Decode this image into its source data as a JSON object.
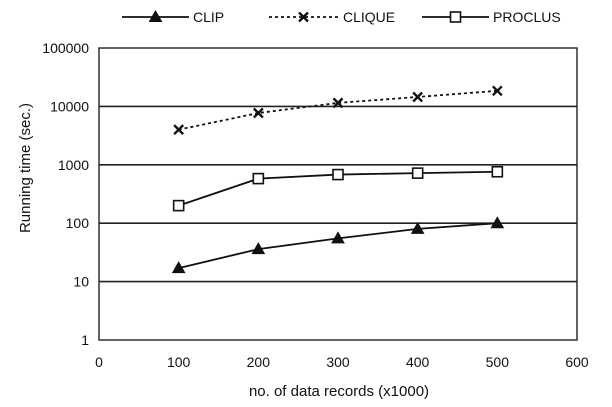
{
  "chart_data": {
    "type": "line",
    "title": "",
    "xlabel": "no. of data records (x1000)",
    "ylabel": "Running time (sec.)",
    "xlim": [
      0,
      600
    ],
    "ylim": [
      1,
      100000
    ],
    "y_scale": "log",
    "x_ticks": [
      "0",
      "100",
      "200",
      "300",
      "400",
      "500",
      "600"
    ],
    "y_ticks": [
      "1",
      "10",
      "100",
      "1000",
      "10000",
      "100000"
    ],
    "grid": "horizontal",
    "legend_position": "top",
    "x": [
      100,
      200,
      300,
      400,
      500
    ],
    "series": [
      {
        "name": "CLIP",
        "values": [
          17,
          36,
          55,
          80,
          100
        ],
        "marker": "filled-triangle",
        "line": "solid",
        "color": "#111111"
      },
      {
        "name": "CLIQUE",
        "values": [
          4000,
          7700,
          11500,
          14500,
          18500
        ],
        "marker": "x",
        "line": "dotted",
        "color": "#111111"
      },
      {
        "name": "PROCLUS",
        "values": [
          200,
          580,
          680,
          720,
          760
        ],
        "marker": "open-square",
        "line": "solid",
        "color": "#111111"
      }
    ]
  }
}
